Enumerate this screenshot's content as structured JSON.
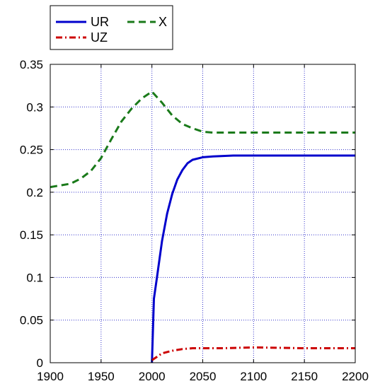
{
  "chart_data": {
    "type": "line",
    "title": "",
    "xlabel": "",
    "ylabel": "",
    "xlim": [
      1900,
      2200
    ],
    "ylim": [
      0,
      0.35
    ],
    "xticks": [
      1900,
      1950,
      2000,
      2050,
      2100,
      2150,
      2200
    ],
    "yticks": [
      0,
      0.05,
      0.1,
      0.15,
      0.2,
      0.25,
      0.3,
      0.35
    ],
    "xtick_labels": [
      "1900",
      "1950",
      "2000",
      "2050",
      "2100",
      "2150",
      "2200"
    ],
    "ytick_labels": [
      "0",
      "0.05",
      "0.1",
      "0.15",
      "0.2",
      "0.25",
      "0.3",
      "0.35"
    ],
    "grid": true,
    "legend_position": "top-left",
    "series": [
      {
        "name": "UR",
        "color": "#0000cc",
        "style": "solid",
        "x": [
          2000,
          2002,
          2005,
          2010,
          2015,
          2020,
          2025,
          2030,
          2035,
          2040,
          2050,
          2060,
          2080,
          2100,
          2150,
          2200
        ],
        "y": [
          0.0,
          0.075,
          0.1,
          0.143,
          0.175,
          0.198,
          0.215,
          0.226,
          0.234,
          0.238,
          0.241,
          0.242,
          0.243,
          0.243,
          0.243,
          0.243
        ]
      },
      {
        "name": "UZ",
        "color": "#cc0000",
        "style": "dashdot",
        "x": [
          2000,
          2005,
          2010,
          2020,
          2030,
          2040,
          2050,
          2070,
          2100,
          2150,
          2200
        ],
        "y": [
          0.003,
          0.007,
          0.011,
          0.014,
          0.016,
          0.017,
          0.017,
          0.017,
          0.018,
          0.017,
          0.017
        ]
      },
      {
        "name": "X",
        "color": "#1a7a1a",
        "style": "dashed",
        "x": [
          1900,
          1910,
          1920,
          1930,
          1940,
          1950,
          1960,
          1970,
          1980,
          1990,
          2000,
          2010,
          2020,
          2030,
          2040,
          2050,
          2060,
          2080,
          2100,
          2150,
          2200
        ],
        "y": [
          0.206,
          0.208,
          0.21,
          0.216,
          0.225,
          0.24,
          0.262,
          0.283,
          0.298,
          0.31,
          0.318,
          0.305,
          0.29,
          0.28,
          0.275,
          0.271,
          0.27,
          0.27,
          0.27,
          0.27,
          0.27
        ]
      }
    ]
  }
}
